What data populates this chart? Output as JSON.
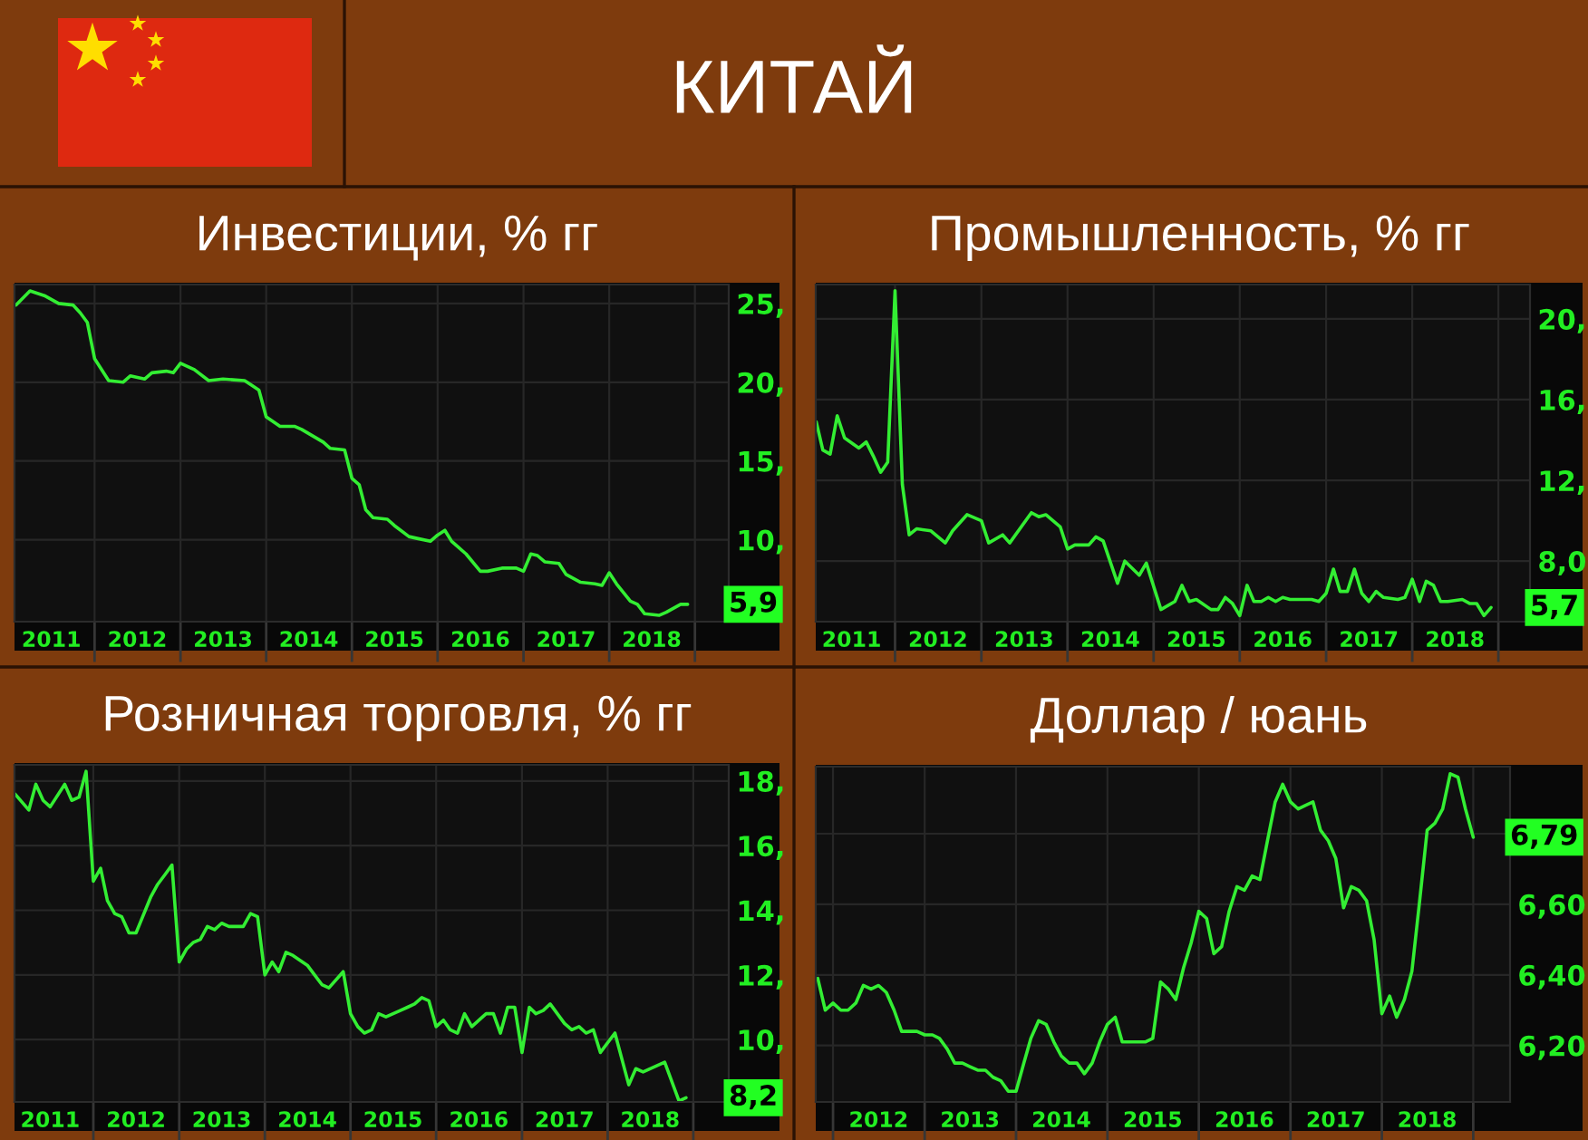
{
  "chart_data": [
    {
      "type": "other",
      "title": "КИТАЙ"
    },
    {
      "type": "line",
      "title": "Инвестиции, % гг",
      "color": "#33ee33",
      "x": [
        "2011-02",
        "2011-04",
        "2011-06",
        "2011-08",
        "2011-10",
        "2011-11",
        "2011-12",
        "2012-01",
        "2012-03",
        "2012-05",
        "2012-06",
        "2012-08",
        "2012-09",
        "2012-11",
        "2012-12",
        "2013-01",
        "2013-03",
        "2013-05",
        "2013-07",
        "2013-10",
        "2013-11",
        "2013-12",
        "2014-01",
        "2014-03",
        "2014-05",
        "2014-06",
        "2014-09",
        "2014-10",
        "2014-12",
        "2015-01",
        "2015-02",
        "2015-03",
        "2015-04",
        "2015-06",
        "2015-07",
        "2015-09",
        "2015-10",
        "2015-12",
        "2016-01",
        "2016-02",
        "2016-03",
        "2016-05",
        "2016-07",
        "2016-08",
        "2016-10",
        "2016-12",
        "2017-01",
        "2017-02",
        "2017-03",
        "2017-04",
        "2017-06",
        "2017-07",
        "2017-09",
        "2017-11",
        "2017-12",
        "2018-01",
        "2018-02",
        "2018-04",
        "2018-05",
        "2018-06",
        "2018-08",
        "2018-09",
        "2018-11",
        "2018-12"
      ],
      "values": [
        24.9,
        25.8,
        25.5,
        25.0,
        24.9,
        24.4,
        23.8,
        21.5,
        20.1,
        20.0,
        20.4,
        20.2,
        20.6,
        20.7,
        20.6,
        21.2,
        20.8,
        20.1,
        20.2,
        20.1,
        19.8,
        19.5,
        17.8,
        17.2,
        17.2,
        17.0,
        16.2,
        15.8,
        15.7,
        13.9,
        13.5,
        11.9,
        11.4,
        11.3,
        10.9,
        10.2,
        10.1,
        9.9,
        10.3,
        10.6,
        9.9,
        9.1,
        8.0,
        8.0,
        8.2,
        8.2,
        8.0,
        9.1,
        9.0,
        8.6,
        8.5,
        7.8,
        7.3,
        7.2,
        7.1,
        7.9,
        7.2,
        6.1,
        5.9,
        5.3,
        5.2,
        5.4,
        5.9,
        5.9
      ],
      "xlim": [
        "2011-01-25",
        "2019-05-25"
      ],
      "ylim": [
        4.8,
        26.2
      ],
      "xticks": [
        {
          "value": "2012",
          "label": null
        },
        {
          "value": "2013",
          "label": null
        },
        {
          "value": "2014",
          "label": null
        },
        {
          "value": "2015",
          "label": null
        },
        {
          "value": "2016",
          "label": null
        },
        {
          "value": "2017",
          "label": null
        },
        {
          "value": "2018",
          "label": null
        },
        {
          "value": "2019",
          "label": null
        },
        {
          "value": "2011-07",
          "label": "2011"
        },
        {
          "value": "2012-07",
          "label": "2012"
        },
        {
          "value": "2013-07",
          "label": "2013"
        },
        {
          "value": "2014-07",
          "label": "2014"
        },
        {
          "value": "2015-07",
          "label": "2015"
        },
        {
          "value": "2016-07",
          "label": "2016"
        },
        {
          "value": "2017-07",
          "label": "2017"
        },
        {
          "value": "2018-07",
          "label": "2018"
        }
      ],
      "yticks": [
        {
          "value": 10,
          "label": "10,"
        },
        {
          "value": 15,
          "label": "15,"
        },
        {
          "value": 20,
          "label": "20,"
        },
        {
          "value": 25,
          "label": "25,"
        }
      ],
      "grid": true,
      "annotations": [
        {
          "text": "5,9",
          "y": 5.9
        }
      ]
    },
    {
      "type": "line",
      "title": "Промышленность, % гг",
      "color": "#33ee33",
      "x": [
        "2011-02",
        "2011-03",
        "2011-04",
        "2011-05",
        "2011-06",
        "2011-08",
        "2011-09",
        "2011-10",
        "2011-11",
        "2011-12",
        "2012-01",
        "2012-02",
        "2012-03",
        "2012-04",
        "2012-06",
        "2012-08",
        "2012-09",
        "2012-11",
        "2013-01",
        "2013-02",
        "2013-04",
        "2013-05",
        "2013-08",
        "2013-09",
        "2013-10",
        "2013-12",
        "2014-01",
        "2014-02",
        "2014-04",
        "2014-05",
        "2014-06",
        "2014-08",
        "2014-09",
        "2014-11",
        "2014-12",
        "2015-02",
        "2015-04",
        "2015-05",
        "2015-06",
        "2015-07",
        "2015-09",
        "2015-10",
        "2015-11",
        "2015-12",
        "2016-01",
        "2016-02",
        "2016-03",
        "2016-04",
        "2016-05",
        "2016-06",
        "2016-07",
        "2016-08",
        "2016-10",
        "2016-11",
        "2016-12",
        "2017-01",
        "2017-02",
        "2017-03",
        "2017-04",
        "2017-05",
        "2017-06",
        "2017-07",
        "2017-08",
        "2017-09",
        "2017-11",
        "2017-12",
        "2018-01",
        "2018-02",
        "2018-03",
        "2018-04",
        "2018-05",
        "2018-06",
        "2018-08",
        "2018-09",
        "2018-10",
        "2018-11",
        "2018-12"
      ],
      "values": [
        14.9,
        13.5,
        13.3,
        15.2,
        14.1,
        13.6,
        13.9,
        13.2,
        12.4,
        12.9,
        21.4,
        11.8,
        9.3,
        9.6,
        9.5,
        8.9,
        9.5,
        10.3,
        10.0,
        8.9,
        9.3,
        8.9,
        10.4,
        10.2,
        10.3,
        9.7,
        8.6,
        8.8,
        8.8,
        9.2,
        9.0,
        6.9,
        8.0,
        7.3,
        7.9,
        5.6,
        6.0,
        6.8,
        6.0,
        6.1,
        5.6,
        5.6,
        6.2,
        5.9,
        5.3,
        6.8,
        6.0,
        6.0,
        6.2,
        6.0,
        6.2,
        6.1,
        6.1,
        6.1,
        6.0,
        6.4,
        7.6,
        6.5,
        6.5,
        7.6,
        6.4,
        6.0,
        6.5,
        6.2,
        6.1,
        6.2,
        7.1,
        6.0,
        7.0,
        6.8,
        6.0,
        6.0,
        6.1,
        5.9,
        5.9,
        5.3,
        5.7
      ],
      "xlim": [
        "2011-01-30",
        "2019-05-15"
      ],
      "ylim": [
        5.0,
        21.7
      ],
      "xticks": [
        {
          "value": "2012",
          "label": null
        },
        {
          "value": "2013",
          "label": null
        },
        {
          "value": "2014",
          "label": null
        },
        {
          "value": "2015",
          "label": null
        },
        {
          "value": "2016",
          "label": null
        },
        {
          "value": "2017",
          "label": null
        },
        {
          "value": "2018",
          "label": null
        },
        {
          "value": "2019",
          "label": null
        },
        {
          "value": "2011-07",
          "label": "2011"
        },
        {
          "value": "2012-07",
          "label": "2012"
        },
        {
          "value": "2013-07",
          "label": "2013"
        },
        {
          "value": "2014-07",
          "label": "2014"
        },
        {
          "value": "2015-07",
          "label": "2015"
        },
        {
          "value": "2016-07",
          "label": "2016"
        },
        {
          "value": "2017-07",
          "label": "2017"
        },
        {
          "value": "2018-07",
          "label": "2018"
        }
      ],
      "yticks": [
        {
          "value": 8,
          "label": "8,0"
        },
        {
          "value": 12,
          "label": "12,"
        },
        {
          "value": 16,
          "label": "16,"
        },
        {
          "value": 20,
          "label": "20,"
        }
      ],
      "grid": true,
      "annotations": [
        {
          "text": "5,7",
          "y": 5.7
        }
      ]
    },
    {
      "type": "line",
      "title": "Розничная торговля, % гг",
      "color": "#33ee33",
      "x": [
        "2011-02",
        "2011-04",
        "2011-05",
        "2011-06",
        "2011-07",
        "2011-09",
        "2011-10",
        "2011-11",
        "2011-12",
        "2012-01",
        "2012-02",
        "2012-03",
        "2012-04",
        "2012-05",
        "2012-06",
        "2012-07",
        "2012-09",
        "2012-10",
        "2012-11",
        "2012-12",
        "2013-01",
        "2013-02",
        "2013-03",
        "2013-04",
        "2013-05",
        "2013-06",
        "2013-07",
        "2013-08",
        "2013-10",
        "2013-11",
        "2013-12",
        "2014-01",
        "2014-02",
        "2014-03",
        "2014-04",
        "2014-05",
        "2014-07",
        "2014-08",
        "2014-09",
        "2014-10",
        "2014-12",
        "2015-01",
        "2015-02",
        "2015-03",
        "2015-04",
        "2015-05",
        "2015-06",
        "2015-08",
        "2015-09",
        "2015-10",
        "2015-11",
        "2015-12",
        "2016-01",
        "2016-02",
        "2016-03",
        "2016-04",
        "2016-05",
        "2016-06",
        "2016-08",
        "2016-09",
        "2016-10",
        "2016-11",
        "2016-12",
        "2017-01",
        "2017-02",
        "2017-03",
        "2017-04",
        "2017-05",
        "2017-07",
        "2017-08",
        "2017-09",
        "2017-10",
        "2017-11",
        "2017-12",
        "2018-02",
        "2018-04",
        "2018-05",
        "2018-06",
        "2018-09",
        "2018-11",
        "2018-12"
      ],
      "values": [
        17.6,
        17.1,
        17.9,
        17.4,
        17.2,
        17.9,
        17.4,
        17.5,
        18.3,
        14.9,
        15.3,
        14.3,
        13.9,
        13.8,
        13.3,
        13.3,
        14.4,
        14.8,
        15.1,
        15.4,
        12.4,
        12.8,
        13.0,
        13.1,
        13.5,
        13.4,
        13.6,
        13.5,
        13.5,
        13.9,
        13.8,
        12.0,
        12.4,
        12.1,
        12.7,
        12.6,
        12.3,
        12.0,
        11.7,
        11.6,
        12.1,
        10.8,
        10.4,
        10.2,
        10.3,
        10.8,
        10.7,
        10.9,
        11.0,
        11.1,
        11.3,
        11.2,
        10.4,
        10.6,
        10.3,
        10.2,
        10.8,
        10.4,
        10.8,
        10.8,
        10.2,
        11.0,
        11.0,
        9.6,
        11.0,
        10.8,
        10.9,
        11.1,
        10.5,
        10.3,
        10.4,
        10.2,
        10.3,
        9.6,
        10.2,
        8.6,
        9.1,
        9.0,
        9.3,
        8.1,
        8.2
      ],
      "xlim": [
        "2011-01-30",
        "2019-06-01"
      ],
      "ylim": [
        8.07,
        18.5
      ],
      "xticks": [
        {
          "value": "2012",
          "label": null
        },
        {
          "value": "2013",
          "label": null
        },
        {
          "value": "2014",
          "label": null
        },
        {
          "value": "2015",
          "label": null
        },
        {
          "value": "2016",
          "label": null
        },
        {
          "value": "2017",
          "label": null
        },
        {
          "value": "2018",
          "label": null
        },
        {
          "value": "2019",
          "label": null
        },
        {
          "value": "2011-07",
          "label": "2011"
        },
        {
          "value": "2012-07",
          "label": "2012"
        },
        {
          "value": "2013-07",
          "label": "2013"
        },
        {
          "value": "2014-07",
          "label": "2014"
        },
        {
          "value": "2015-07",
          "label": "2015"
        },
        {
          "value": "2016-07",
          "label": "2016"
        },
        {
          "value": "2017-07",
          "label": "2017"
        },
        {
          "value": "2018-07",
          "label": "2018"
        }
      ],
      "yticks": [
        {
          "value": 10,
          "label": "10,"
        },
        {
          "value": 12,
          "label": "12,"
        },
        {
          "value": 14,
          "label": "14,"
        },
        {
          "value": 16,
          "label": "16,"
        },
        {
          "value": 18,
          "label": "18,"
        }
      ],
      "grid": true,
      "annotations": [
        {
          "text": "8,2",
          "y": 8.2
        }
      ]
    },
    {
      "type": "line",
      "title": "Доллар / юань",
      "color": "#33ee33",
      "x": [
        "2011-11",
        "2011-12",
        "2012-01",
        "2012-02",
        "2012-03",
        "2012-04",
        "2012-05",
        "2012-06",
        "2012-07",
        "2012-08",
        "2012-09",
        "2012-10",
        "2012-11",
        "2012-12",
        "2013-01",
        "2013-02",
        "2013-03",
        "2013-04",
        "2013-05",
        "2013-06",
        "2013-07",
        "2013-08",
        "2013-09",
        "2013-10",
        "2013-11",
        "2013-12",
        "2014-01",
        "2014-02",
        "2014-03",
        "2014-04",
        "2014-05",
        "2014-06",
        "2014-07",
        "2014-08",
        "2014-09",
        "2014-10",
        "2014-11",
        "2014-12",
        "2015-01",
        "2015-02",
        "2015-03",
        "2015-04",
        "2015-05",
        "2015-06",
        "2015-07",
        "2015-08",
        "2015-09",
        "2015-10",
        "2015-11",
        "2015-12",
        "2016-01",
        "2016-02",
        "2016-03",
        "2016-04",
        "2016-05",
        "2016-06",
        "2016-07",
        "2016-08",
        "2016-09",
        "2016-10",
        "2016-11",
        "2016-12",
        "2017-01",
        "2017-02",
        "2017-03",
        "2017-04",
        "2017-05",
        "2017-06",
        "2017-07",
        "2017-08",
        "2017-09",
        "2017-10",
        "2017-11",
        "2017-12",
        "2018-01",
        "2018-02",
        "2018-03",
        "2018-04",
        "2018-05",
        "2018-06",
        "2018-07",
        "2018-08",
        "2018-09",
        "2018-10",
        "2018-11",
        "2018-12",
        "2019-01"
      ],
      "values": [
        6.39,
        6.3,
        6.32,
        6.3,
        6.3,
        6.32,
        6.37,
        6.36,
        6.37,
        6.35,
        6.3,
        6.24,
        6.24,
        6.24,
        6.23,
        6.23,
        6.22,
        6.19,
        6.15,
        6.15,
        6.14,
        6.13,
        6.13,
        6.11,
        6.1,
        6.07,
        6.07,
        6.15,
        6.22,
        6.27,
        6.26,
        6.21,
        6.17,
        6.15,
        6.15,
        6.12,
        6.15,
        6.21,
        6.26,
        6.28,
        6.21,
        6.21,
        6.21,
        6.21,
        6.22,
        6.38,
        6.36,
        6.33,
        6.42,
        6.49,
        6.58,
        6.56,
        6.46,
        6.48,
        6.58,
        6.65,
        6.64,
        6.68,
        6.67,
        6.78,
        6.89,
        6.94,
        6.89,
        6.87,
        6.88,
        6.89,
        6.81,
        6.78,
        6.73,
        6.59,
        6.65,
        6.64,
        6.61,
        6.5,
        6.29,
        6.34,
        6.28,
        6.33,
        6.41,
        6.61,
        6.81,
        6.83,
        6.87,
        6.97,
        6.96,
        6.87,
        6.79
      ],
      "xlim": [
        "2011-10-24",
        "2019-05-28"
      ],
      "ylim": [
        6.04,
        6.99
      ],
      "xticks": [
        {
          "value": "2012",
          "label": null
        },
        {
          "value": "2013",
          "label": null
        },
        {
          "value": "2014",
          "label": null
        },
        {
          "value": "2015",
          "label": null
        },
        {
          "value": "2016",
          "label": null
        },
        {
          "value": "2017",
          "label": null
        },
        {
          "value": "2018",
          "label": null
        },
        {
          "value": "2019",
          "label": null
        },
        {
          "value": "2012-07",
          "label": "2012"
        },
        {
          "value": "2013-07",
          "label": "2013"
        },
        {
          "value": "2014-07",
          "label": "2014"
        },
        {
          "value": "2015-07",
          "label": "2015"
        },
        {
          "value": "2016-07",
          "label": "2016"
        },
        {
          "value": "2017-07",
          "label": "2017"
        },
        {
          "value": "2018-07",
          "label": "2018"
        }
      ],
      "yticks": [
        {
          "value": 6.2,
          "label": "6,20"
        },
        {
          "value": 6.4,
          "label": "6,40"
        },
        {
          "value": 6.6,
          "label": "6,60"
        },
        {
          "value": 6.8,
          "label": null
        }
      ],
      "grid": true,
      "annotations": [
        {
          "text": "6,79",
          "y": 6.79
        }
      ]
    }
  ]
}
